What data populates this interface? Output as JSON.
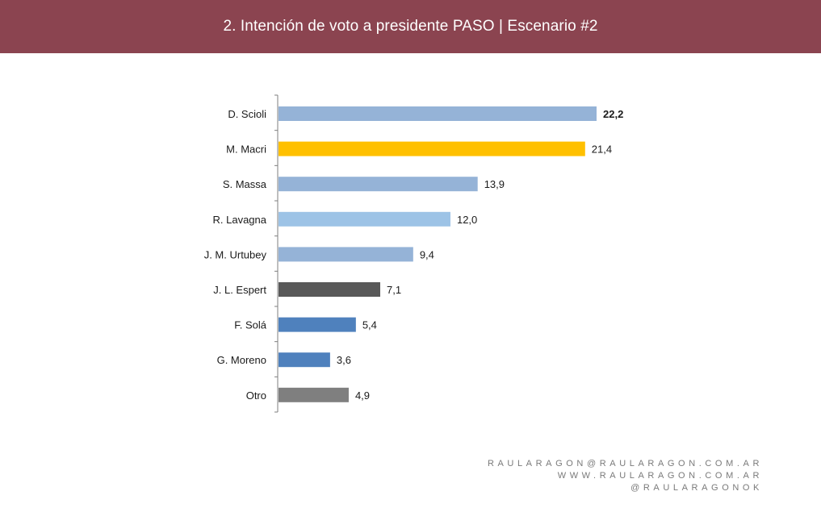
{
  "header": {
    "title": "2. Intención de voto a presidente PASO | Escenario #2"
  },
  "colors": {
    "header_bg": "#8b4450",
    "axis": "#7f7f7f"
  },
  "chart_data": {
    "type": "bar",
    "orientation": "horizontal",
    "title": "",
    "xlabel": "",
    "ylabel": "",
    "xlim": [
      0,
      22.2
    ],
    "grid": false,
    "categories": [
      "D. Scioli",
      "M. Macri",
      "S. Massa",
      "R. Lavagna",
      "J. M. Urtubey",
      "J. L. Espert",
      "F. Solá",
      "G. Moreno",
      "Otro"
    ],
    "values": [
      22.2,
      21.4,
      13.9,
      12.0,
      9.4,
      7.1,
      5.4,
      3.6,
      4.9
    ],
    "value_labels": [
      "22,2",
      "21,4",
      "13,9",
      "12,0",
      "9,4",
      "7,1",
      "5,4",
      "3,6",
      "4,9"
    ],
    "bar_colors": [
      "#95b3d7",
      "#ffc000",
      "#95b3d7",
      "#9dc3e6",
      "#95b3d7",
      "#595959",
      "#4f81bd",
      "#4f81bd",
      "#7f7f7f"
    ],
    "bold_value_index": 0
  },
  "footer": {
    "email": "RAULARAGON@RAULARAGON.COM.AR",
    "website": "WWW.RAULARAGON.COM.AR",
    "handle": "@RAULARAGONOK"
  }
}
